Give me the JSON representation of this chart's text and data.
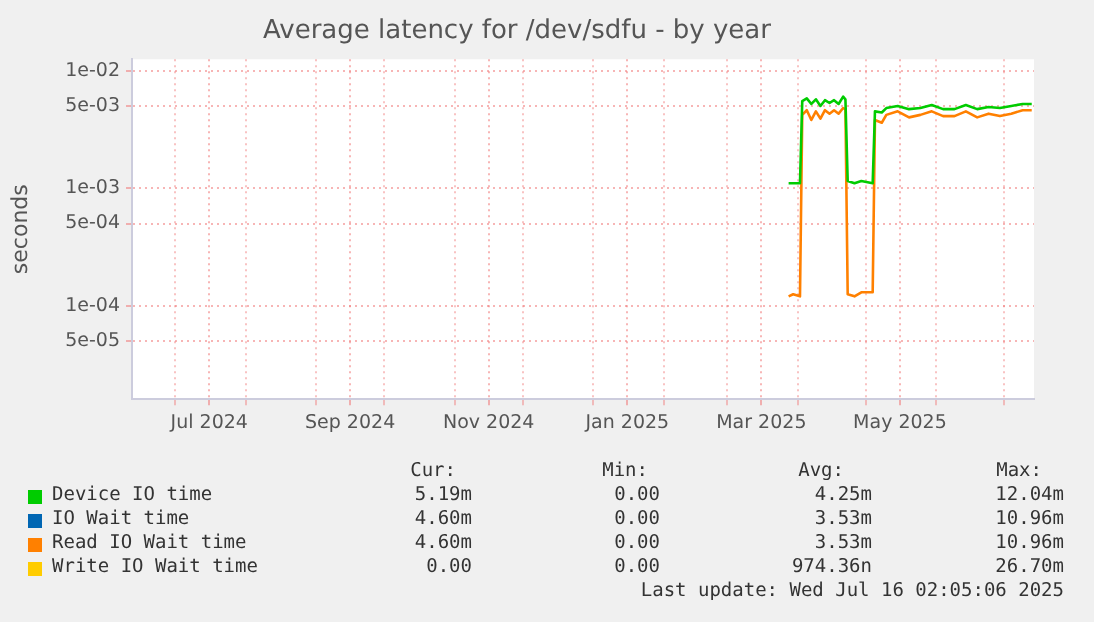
{
  "chart_data": {
    "type": "line",
    "title": "Average latency for /dev/sdfu - by year",
    "ylabel": "seconds",
    "log": "y",
    "grid": true,
    "legend": "bottom",
    "marker": "none",
    "line_style": "solid",
    "xlim": [
      "2024-06-12",
      "2025-07-14"
    ],
    "xticks": [
      {
        "value": "2024-07-01",
        "label": null
      },
      {
        "value": "2024-07-16",
        "label": "Jul 2024"
      },
      {
        "value": "2024-08-01",
        "label": null
      },
      {
        "value": "2024-09-01",
        "label": null
      },
      {
        "value": "2024-09-16",
        "label": "Sep 2024"
      },
      {
        "value": "2024-10-01",
        "label": null
      },
      {
        "value": "2024-11-01",
        "label": null
      },
      {
        "value": "2024-11-16",
        "label": "Nov 2024"
      },
      {
        "value": "2024-12-01",
        "label": null
      },
      {
        "value": "2025-01-01",
        "label": null
      },
      {
        "value": "2025-01-16",
        "label": "Jan 2025"
      },
      {
        "value": "2025-02-01",
        "label": null
      },
      {
        "value": "2025-03-01",
        "label": null
      },
      {
        "value": "2025-03-16",
        "label": "Mar 2025"
      },
      {
        "value": "2025-04-01",
        "label": null
      },
      {
        "value": "2025-05-01",
        "label": null
      },
      {
        "value": "2025-05-16",
        "label": "May 2025"
      },
      {
        "value": "2025-06-01",
        "label": null
      },
      {
        "value": "2025-07-01",
        "label": null
      }
    ],
    "ylim": [
      1.6e-05,
      0.0125
    ],
    "yticks": [
      {
        "value": 0.01,
        "label": "1e-02"
      },
      {
        "value": 0.005,
        "label": "5e-03"
      },
      {
        "value": 0.001,
        "label": "1e-03"
      },
      {
        "value": 0.0005,
        "label": "5e-04"
      },
      {
        "value": 0.0001,
        "label": "1e-04"
      },
      {
        "value": 5e-05,
        "label": "5e-05"
      }
    ],
    "series": [
      {
        "name": "Device IO time",
        "color": "#00cc00",
        "x": [
          "2025-03-28",
          "2025-04-02",
          "2025-04-03",
          "2025-04-05",
          "2025-04-07",
          "2025-04-09",
          "2025-04-11",
          "2025-04-13",
          "2025-04-15",
          "2025-04-17",
          "2025-04-19",
          "2025-04-21",
          "2025-04-22",
          "2025-04-23",
          "2025-04-26",
          "2025-04-29",
          "2025-05-04",
          "2025-05-05",
          "2025-05-08",
          "2025-05-10",
          "2025-05-15",
          "2025-05-20",
          "2025-05-25",
          "2025-05-30",
          "2025-06-04",
          "2025-06-09",
          "2025-06-14",
          "2025-06-19",
          "2025-06-24",
          "2025-06-29",
          "2025-07-04",
          "2025-07-09",
          "2025-07-13"
        ],
        "values": [
          0.0011,
          0.0011,
          0.0055,
          0.0058,
          0.0052,
          0.0057,
          0.005,
          0.0056,
          0.0053,
          0.0056,
          0.0052,
          0.006,
          0.0057,
          0.00115,
          0.0011,
          0.00115,
          0.0011,
          0.0045,
          0.0044,
          0.0048,
          0.005,
          0.0047,
          0.0048,
          0.0051,
          0.0047,
          0.0047,
          0.0051,
          0.0047,
          0.0049,
          0.0048,
          0.005,
          0.0052,
          0.0052
        ]
      },
      {
        "name": "IO Wait time",
        "color": "#0066b3"
      },
      {
        "name": "Read IO Wait time",
        "color": "#ff8000",
        "x": [
          "2025-03-28",
          "2025-03-30",
          "2025-04-02",
          "2025-04-03",
          "2025-04-05",
          "2025-04-07",
          "2025-04-09",
          "2025-04-11",
          "2025-04-13",
          "2025-04-15",
          "2025-04-17",
          "2025-04-19",
          "2025-04-21",
          "2025-04-22",
          "2025-04-23",
          "2025-04-26",
          "2025-04-29",
          "2025-05-04",
          "2025-05-05",
          "2025-05-08",
          "2025-05-10",
          "2025-05-15",
          "2025-05-20",
          "2025-05-25",
          "2025-05-30",
          "2025-06-04",
          "2025-06-09",
          "2025-06-14",
          "2025-06-19",
          "2025-06-24",
          "2025-06-29",
          "2025-07-04",
          "2025-07-09",
          "2025-07-13"
        ],
        "values": [
          0.00012,
          0.000125,
          0.00012,
          0.0042,
          0.0046,
          0.0038,
          0.0045,
          0.0039,
          0.0046,
          0.0043,
          0.0046,
          0.0043,
          0.0048,
          0.0047,
          0.000125,
          0.00012,
          0.00013,
          0.00013,
          0.0038,
          0.0036,
          0.0042,
          0.0045,
          0.004,
          0.0042,
          0.0045,
          0.0041,
          0.0041,
          0.0045,
          0.004,
          0.0043,
          0.0041,
          0.0043,
          0.0046,
          0.0046
        ]
      },
      {
        "name": "Write IO Wait time",
        "color": "#ffcc00"
      }
    ],
    "annotations": [
      "Cur:",
      "Min:",
      "Avg:",
      "Max:",
      "5.19m",
      "0.00",
      "4.25m",
      "12.04m",
      "4.60m",
      "0.00",
      "3.53m",
      "10.96m",
      "4.60m",
      "0.00",
      "3.53m",
      "10.96m",
      "0.00",
      "0.00",
      "974.36n",
      "26.70m",
      "Last update: Wed Jul 16 02:05:06 2025"
    ]
  }
}
